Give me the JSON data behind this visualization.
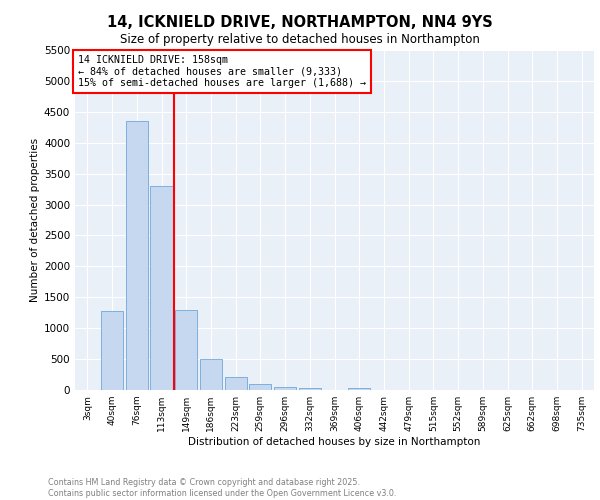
{
  "title": "14, ICKNIELD DRIVE, NORTHAMPTON, NN4 9YS",
  "subtitle": "Size of property relative to detached houses in Northampton",
  "xlabel": "Distribution of detached houses by size in Northampton",
  "ylabel": "Number of detached properties",
  "categories": [
    "3sqm",
    "40sqm",
    "76sqm",
    "113sqm",
    "149sqm",
    "186sqm",
    "223sqm",
    "259sqm",
    "296sqm",
    "332sqm",
    "369sqm",
    "406sqm",
    "442sqm",
    "479sqm",
    "515sqm",
    "552sqm",
    "589sqm",
    "625sqm",
    "662sqm",
    "698sqm",
    "735sqm"
  ],
  "values": [
    0,
    1270,
    4350,
    3300,
    1290,
    500,
    215,
    90,
    55,
    30,
    0,
    40,
    0,
    0,
    0,
    0,
    0,
    0,
    0,
    0,
    0
  ],
  "bar_color": "#c5d8f0",
  "bar_edge_color": "#5b9bd5",
  "vline_x_index": 4,
  "vline_color": "red",
  "annotation_text": "14 ICKNIELD DRIVE: 158sqm\n← 84% of detached houses are smaller (9,333)\n15% of semi-detached houses are larger (1,688) →",
  "annotation_box_color": "white",
  "annotation_box_edge": "red",
  "ylim": [
    0,
    5500
  ],
  "yticks": [
    0,
    500,
    1000,
    1500,
    2000,
    2500,
    3000,
    3500,
    4000,
    4500,
    5000,
    5500
  ],
  "bg_color": "#eaf0f8",
  "footer_line1": "Contains HM Land Registry data © Crown copyright and database right 2025.",
  "footer_line2": "Contains public sector information licensed under the Open Government Licence v3.0."
}
